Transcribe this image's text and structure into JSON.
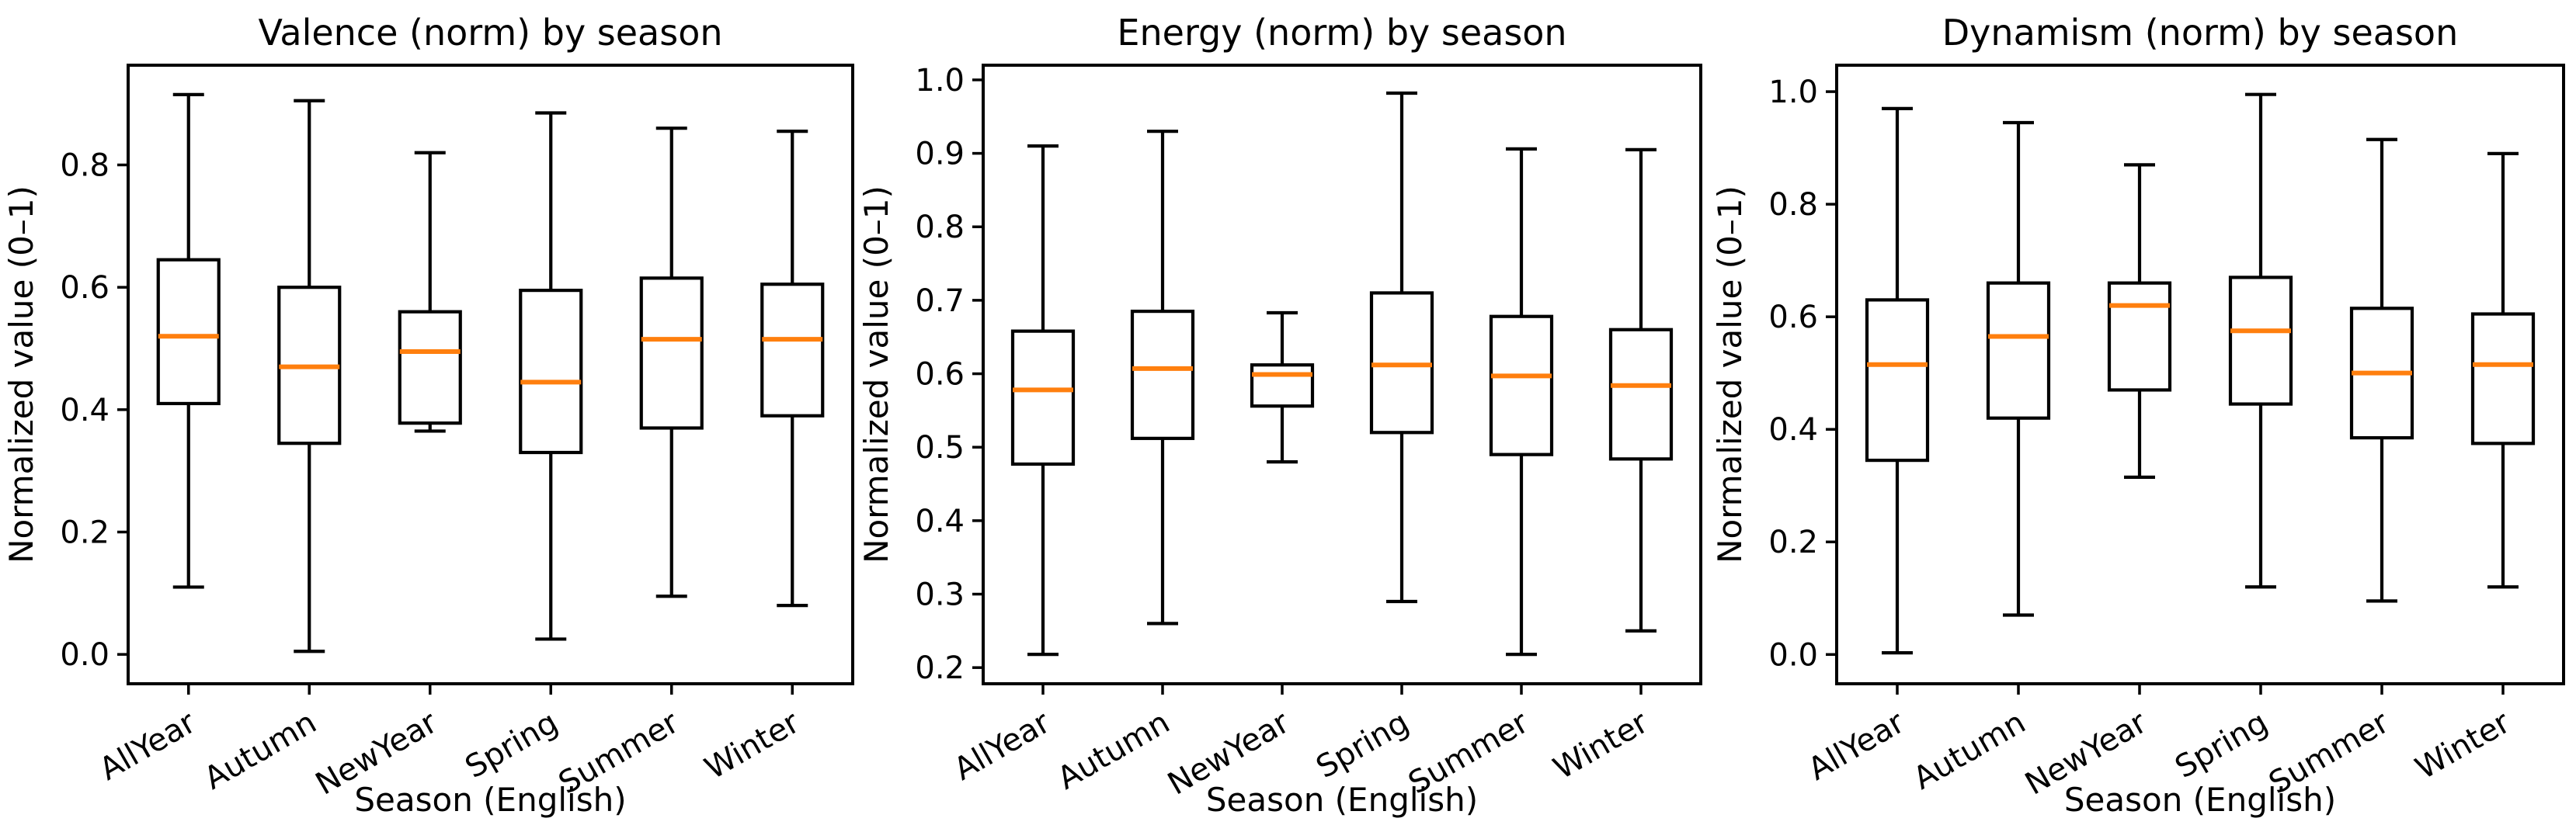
{
  "page": {
    "background": "#ffffff",
    "figure_type": "matplotlib-boxplot-figure",
    "n_subplots": 3
  },
  "chart_data": [
    {
      "type": "box",
      "title": "Valence (norm) by season",
      "xlabel": "Season (English)",
      "ylabel": "Normalized value (0–1)",
      "categories": [
        "AllYear",
        "Autumn",
        "NewYear",
        "Spring",
        "Summer",
        "Winter"
      ],
      "x_tick_rotation": 30,
      "grid": false,
      "legend": "none",
      "ylim": [
        -0.048,
        0.963
      ],
      "yticks": [
        0.0,
        0.2,
        0.4,
        0.6,
        0.8
      ],
      "ytick_labels": [
        "0.0",
        "0.2",
        "0.4",
        "0.6",
        "0.8"
      ],
      "colors": {
        "box_line": "#000000",
        "median": "#ff7f0e",
        "background": "#ffffff"
      },
      "boxes": [
        {
          "category": "AllYear",
          "whislo": 0.11,
          "q1": 0.41,
          "med": 0.52,
          "q3": 0.645,
          "whishi": 0.915
        },
        {
          "category": "Autumn",
          "whislo": 0.005,
          "q1": 0.345,
          "med": 0.47,
          "q3": 0.6,
          "whishi": 0.905
        },
        {
          "category": "NewYear",
          "whislo": 0.365,
          "q1": 0.378,
          "med": 0.495,
          "q3": 0.56,
          "whishi": 0.82
        },
        {
          "category": "Spring",
          "whislo": 0.025,
          "q1": 0.33,
          "med": 0.445,
          "q3": 0.595,
          "whishi": 0.885
        },
        {
          "category": "Summer",
          "whislo": 0.095,
          "q1": 0.37,
          "med": 0.515,
          "q3": 0.615,
          "whishi": 0.86
        },
        {
          "category": "Winter",
          "whislo": 0.08,
          "q1": 0.39,
          "med": 0.515,
          "q3": 0.605,
          "whishi": 0.855
        }
      ]
    },
    {
      "type": "box",
      "title": "Energy (norm) by season",
      "xlabel": "Season (English)",
      "ylabel": "Normalized value (0–1)",
      "categories": [
        "AllYear",
        "Autumn",
        "NewYear",
        "Spring",
        "Summer",
        "Winter"
      ],
      "x_tick_rotation": 30,
      "grid": false,
      "legend": "none",
      "ylim": [
        0.178,
        1.02
      ],
      "yticks": [
        0.2,
        0.3,
        0.4,
        0.5,
        0.6,
        0.7,
        0.8,
        0.9,
        1.0
      ],
      "ytick_labels": [
        "0.2",
        "0.3",
        "0.4",
        "0.5",
        "0.6",
        "0.7",
        "0.8",
        "0.9",
        "1.0"
      ],
      "colors": {
        "box_line": "#000000",
        "median": "#ff7f0e",
        "background": "#ffffff"
      },
      "boxes": [
        {
          "category": "AllYear",
          "whislo": 0.218,
          "q1": 0.477,
          "med": 0.578,
          "q3": 0.658,
          "whishi": 0.91
        },
        {
          "category": "Autumn",
          "whislo": 0.26,
          "q1": 0.512,
          "med": 0.607,
          "q3": 0.685,
          "whishi": 0.93
        },
        {
          "category": "NewYear",
          "whislo": 0.48,
          "q1": 0.556,
          "med": 0.599,
          "q3": 0.612,
          "whishi": 0.683
        },
        {
          "category": "Spring",
          "whislo": 0.29,
          "q1": 0.52,
          "med": 0.612,
          "q3": 0.71,
          "whishi": 0.982
        },
        {
          "category": "Summer",
          "whislo": 0.218,
          "q1": 0.49,
          "med": 0.597,
          "q3": 0.678,
          "whishi": 0.906
        },
        {
          "category": "Winter",
          "whislo": 0.25,
          "q1": 0.484,
          "med": 0.584,
          "q3": 0.66,
          "whishi": 0.905
        }
      ]
    },
    {
      "type": "box",
      "title": "Dynamism (norm) by season",
      "xlabel": "Season (English)",
      "ylabel": "Normalized value (0–1)",
      "categories": [
        "AllYear",
        "Autumn",
        "NewYear",
        "Spring",
        "Summer",
        "Winter"
      ],
      "x_tick_rotation": 30,
      "grid": false,
      "legend": "none",
      "ylim": [
        -0.052,
        1.047
      ],
      "yticks": [
        0.0,
        0.2,
        0.4,
        0.6,
        0.8,
        1.0
      ],
      "ytick_labels": [
        "0.0",
        "0.2",
        "0.4",
        "0.6",
        "0.8",
        "1.0"
      ],
      "colors": {
        "box_line": "#000000",
        "median": "#ff7f0e",
        "background": "#ffffff"
      },
      "boxes": [
        {
          "category": "AllYear",
          "whislo": 0.003,
          "q1": 0.345,
          "med": 0.515,
          "q3": 0.63,
          "whishi": 0.97
        },
        {
          "category": "Autumn",
          "whislo": 0.07,
          "q1": 0.42,
          "med": 0.565,
          "q3": 0.66,
          "whishi": 0.945
        },
        {
          "category": "NewYear",
          "whislo": 0.315,
          "q1": 0.47,
          "med": 0.62,
          "q3": 0.66,
          "whishi": 0.87
        },
        {
          "category": "Spring",
          "whislo": 0.12,
          "q1": 0.445,
          "med": 0.575,
          "q3": 0.67,
          "whishi": 0.995
        },
        {
          "category": "Summer",
          "whislo": 0.095,
          "q1": 0.385,
          "med": 0.5,
          "q3": 0.615,
          "whishi": 0.915
        },
        {
          "category": "Winter",
          "whislo": 0.12,
          "q1": 0.375,
          "med": 0.515,
          "q3": 0.605,
          "whishi": 0.89
        }
      ]
    }
  ]
}
